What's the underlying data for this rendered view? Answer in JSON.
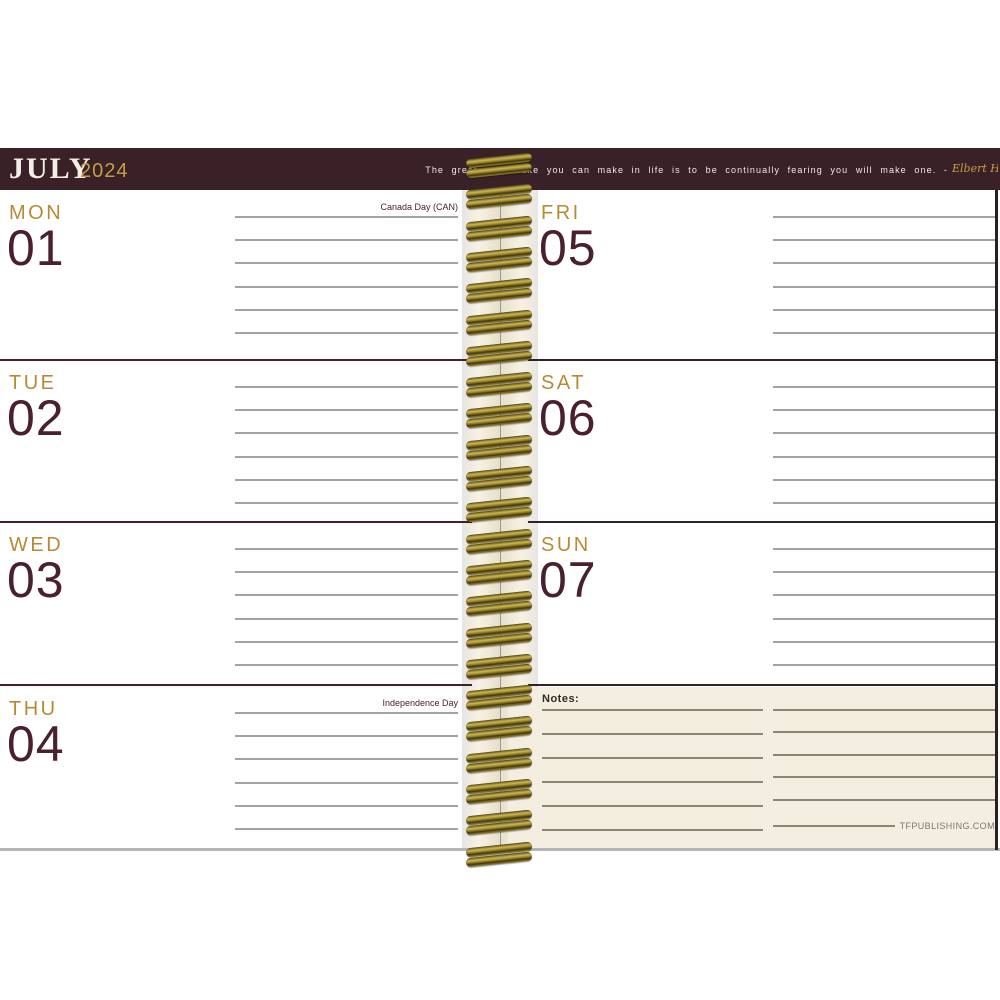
{
  "header": {
    "month": "JULY",
    "year": "2024",
    "quote": "The greatest mistake you can make in life is to be continually fearing you will make one. -",
    "attribution": "Elbert Hubbard"
  },
  "left_page": {
    "days": [
      {
        "name": "MON",
        "number": "01",
        "holiday": "Canada Day (CAN)"
      },
      {
        "name": "TUE",
        "number": "02",
        "holiday": ""
      },
      {
        "name": "WED",
        "number": "03",
        "holiday": ""
      },
      {
        "name": "THU",
        "number": "04",
        "holiday": "Independence Day"
      }
    ]
  },
  "right_page": {
    "days": [
      {
        "name": "FRI",
        "number": "05",
        "holiday": ""
      },
      {
        "name": "SAT",
        "number": "06",
        "holiday": ""
      },
      {
        "name": "SUN",
        "number": "07",
        "holiday": ""
      }
    ],
    "notes": {
      "label": "Notes:",
      "footer": "TFPUBLISHING.COM"
    }
  },
  "colors": {
    "header_bar": "#3a2127",
    "gold_accent": "#b68b33",
    "day_number": "#4a2030",
    "notes_cream": "#f4eee1",
    "rule_gray": "#a3a3a3"
  }
}
